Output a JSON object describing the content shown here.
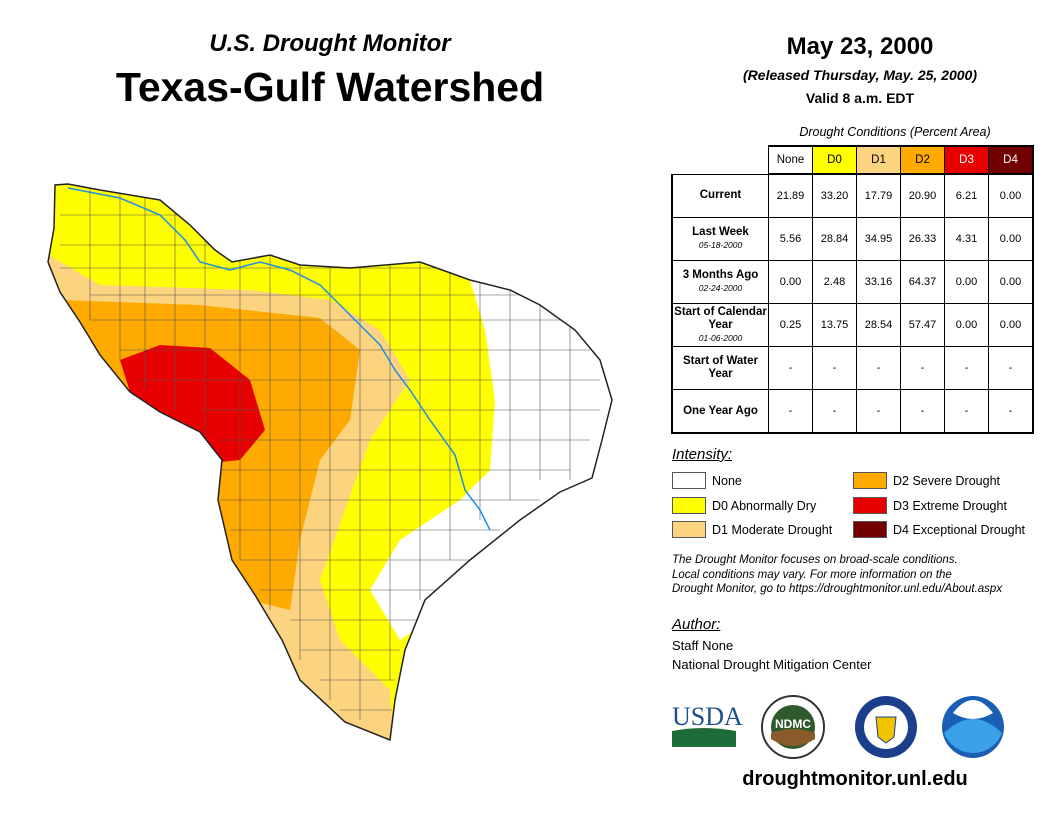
{
  "header": {
    "subtitle": "U.S. Drought Monitor",
    "title": "Texas-Gulf Watershed",
    "date": "May 23, 2000",
    "released": "(Released Thursday, May. 25, 2000)",
    "valid": "Valid 8 a.m. EDT"
  },
  "table": {
    "caption": "Drought Conditions (Percent Area)",
    "columns": [
      {
        "label": "None",
        "bg": "#ffffff",
        "fg": "#000000"
      },
      {
        "label": "D0",
        "bg": "#ffff00",
        "fg": "#000000"
      },
      {
        "label": "D1",
        "bg": "#fcd37f",
        "fg": "#000000"
      },
      {
        "label": "D2",
        "bg": "#ffaa00",
        "fg": "#000000"
      },
      {
        "label": "D3",
        "bg": "#e60000",
        "fg": "#ffffff"
      },
      {
        "label": "D4",
        "bg": "#730000",
        "fg": "#ffffff"
      }
    ],
    "rows": [
      {
        "label": "Current",
        "date": "",
        "values": [
          "21.89",
          "33.20",
          "17.79",
          "20.90",
          "6.21",
          "0.00"
        ]
      },
      {
        "label": "Last Week",
        "date": "05-18-2000",
        "values": [
          "5.56",
          "28.84",
          "34.95",
          "26.33",
          "4.31",
          "0.00"
        ]
      },
      {
        "label": "3 Months Ago",
        "date": "02-24-2000",
        "values": [
          "0.00",
          "2.48",
          "33.16",
          "64.37",
          "0.00",
          "0.00"
        ]
      },
      {
        "label": "Start of Calendar Year",
        "date": "01-06-2000",
        "values": [
          "0.25",
          "13.75",
          "28.54",
          "57.47",
          "0.00",
          "0.00"
        ]
      },
      {
        "label": "Start of Water Year",
        "date": "",
        "values": [
          "-",
          "-",
          "-",
          "-",
          "-",
          "-"
        ]
      },
      {
        "label": "One Year Ago",
        "date": "",
        "values": [
          "-",
          "-",
          "-",
          "-",
          "-",
          "-"
        ]
      }
    ]
  },
  "legend": {
    "title": "Intensity:",
    "items": [
      {
        "label": "None",
        "color": "#ffffff"
      },
      {
        "label": "D0 Abnormally Dry",
        "color": "#ffff00"
      },
      {
        "label": "D1 Moderate Drought",
        "color": "#fcd37f"
      },
      {
        "label": "D2 Severe Drought",
        "color": "#ffaa00"
      },
      {
        "label": "D3 Extreme Drought",
        "color": "#e60000"
      },
      {
        "label": "D4 Exceptional Drought",
        "color": "#730000"
      }
    ]
  },
  "note": [
    "The Drought Monitor focuses on broad-scale conditions.",
    "Local conditions may vary. For more information on the",
    "Drought Monitor, go to https://droughtmonitor.unl.edu/About.aspx"
  ],
  "author": {
    "heading": "Author:",
    "name": "Staff None",
    "org": "National Drought Mitigation Center"
  },
  "logos": {
    "usda": "USDA",
    "ndmc": "NDMC",
    "noaa": "NOAA"
  },
  "footer": {
    "url": "droughtmonitor.unl.edu"
  }
}
